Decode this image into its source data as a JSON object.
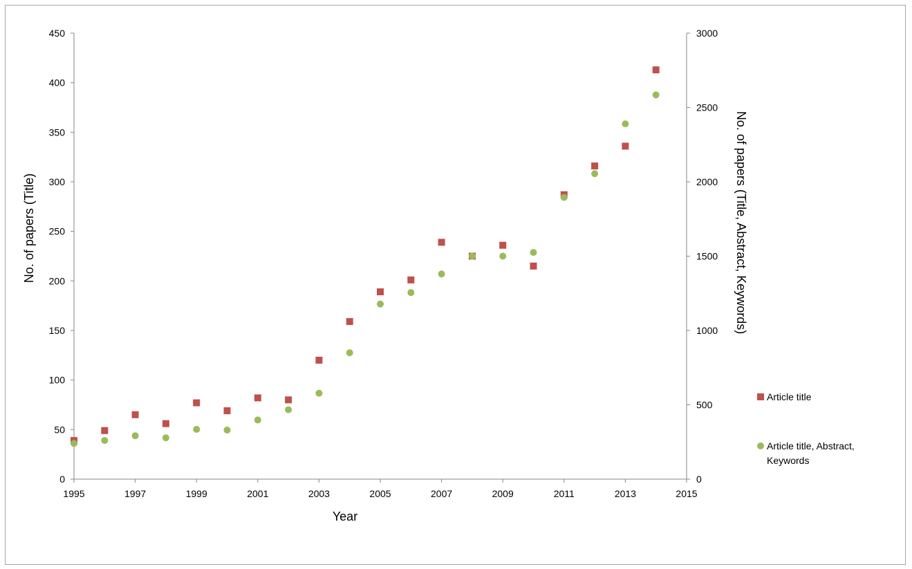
{
  "chart_data": {
    "type": "scatter",
    "title": "",
    "xlabel": "Year",
    "ylabel_left": "No. of papers (Title)",
    "ylabel_right": "No. of papers (Title, Abstract, Keywords)",
    "xlim": [
      1995,
      2015
    ],
    "ylim_left": [
      0,
      450
    ],
    "ylim_right": [
      0,
      3000
    ],
    "x_ticks": [
      1995,
      1997,
      1999,
      2001,
      2003,
      2005,
      2007,
      2009,
      2011,
      2013,
      2015
    ],
    "y_left_ticks": [
      0,
      50,
      100,
      150,
      200,
      250,
      300,
      350,
      400,
      450
    ],
    "y_right_ticks": [
      0,
      500,
      1000,
      1500,
      2000,
      2500,
      3000
    ],
    "grid": false,
    "legend_position": "right",
    "series": [
      {
        "name": "Article title",
        "axis": "left",
        "marker": "square",
        "color": "#c0504d",
        "x": [
          1995,
          1996,
          1997,
          1998,
          1999,
          2000,
          2001,
          2002,
          2003,
          2004,
          2005,
          2006,
          2007,
          2008,
          2009,
          2010,
          2011,
          2012,
          2013,
          2014
        ],
        "y": [
          39,
          49,
          65,
          56,
          77,
          69,
          82,
          80,
          120,
          159,
          189,
          201,
          239,
          225,
          236,
          215,
          287,
          316,
          336,
          413
        ]
      },
      {
        "name": "Article title, Abstract, Keywords",
        "axis": "right",
        "marker": "circle",
        "color": "#9bbb59",
        "x": [
          1995,
          1996,
          1997,
          1998,
          1999,
          2000,
          2001,
          2002,
          2003,
          2004,
          2005,
          2006,
          2007,
          2008,
          2009,
          2010,
          2011,
          2012,
          2013,
          2014
        ],
        "y": [
          240,
          260,
          292,
          278,
          335,
          330,
          398,
          467,
          578,
          850,
          1178,
          1255,
          1380,
          1500,
          1500,
          1525,
          1895,
          2055,
          2390,
          2585
        ]
      }
    ],
    "legend": [
      {
        "label_lines": [
          "Article title"
        ]
      },
      {
        "label_lines": [
          "Article title, Abstract,",
          "Keywords"
        ]
      }
    ]
  }
}
